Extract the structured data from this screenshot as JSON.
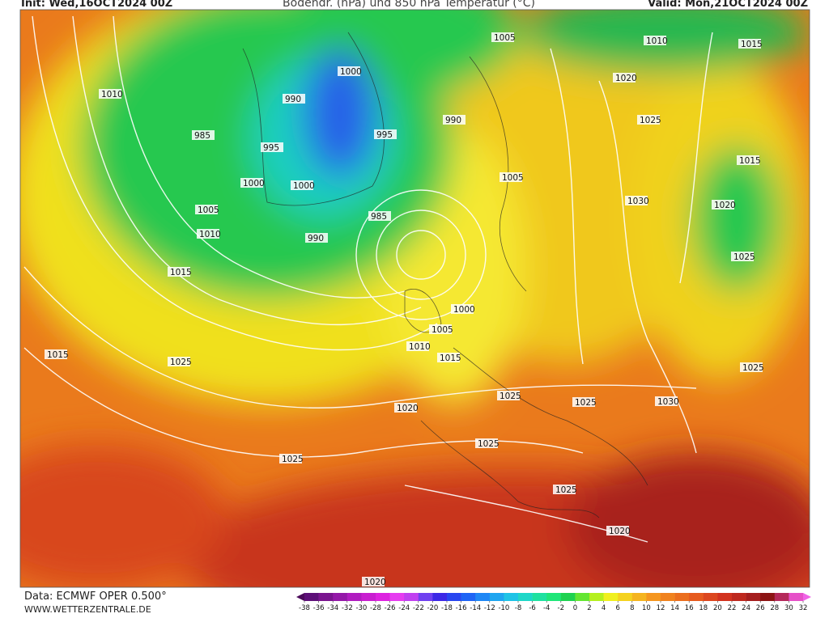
{
  "header": {
    "init": "Init: Wed,16OCT2024 00Z",
    "title": "Bodendr. (hPa) und 850 hPa Temperatur (°C)",
    "valid": "Valid: Mon,21OCT2024 00Z"
  },
  "footer": {
    "data": "Data: ECMWF OPER 0.500°",
    "site": "WWW.WETTERZENTRALE.DE"
  },
  "map": {
    "isobar_labels": [
      "1010",
      "990",
      "985",
      "995",
      "1000",
      "1000",
      "1005",
      "1010",
      "990",
      "985",
      "1015",
      "1000",
      "995",
      "990",
      "1005",
      "1010",
      "1015",
      "1020",
      "1025",
      "1005",
      "1015",
      "1030",
      "1020",
      "1025",
      "1000",
      "1005",
      "1010",
      "1015",
      "1015",
      "1025",
      "1025",
      "1025",
      "1030",
      "1025",
      "1020",
      "1025",
      "1025",
      "1025",
      "1020",
      "1020"
    ]
  },
  "colorbar": {
    "ticks": [
      -38,
      -36,
      -34,
      -32,
      -30,
      -28,
      -26,
      -24,
      -22,
      -20,
      -18,
      -16,
      -14,
      -12,
      -10,
      -8,
      -6,
      -4,
      -2,
      0,
      2,
      4,
      6,
      8,
      10,
      12,
      14,
      16,
      18,
      20,
      22,
      24,
      26,
      28,
      30,
      32
    ],
    "colors": [
      "#4b0a5a",
      "#5d0f78",
      "#7a148f",
      "#9418a8",
      "#b01cc0",
      "#c81ed0",
      "#dd22e0",
      "#e63cf0",
      "#c040f0",
      "#7040f0",
      "#3c28e6",
      "#2846f0",
      "#1e64f5",
      "#1e87f5",
      "#1ea5f0",
      "#1ec3e6",
      "#1ed7c8",
      "#1ee1a0",
      "#1ee678",
      "#1ed250",
      "#64e632",
      "#b4f01e",
      "#f0f01e",
      "#f5d21e",
      "#f5b41e",
      "#f5961e",
      "#f0821e",
      "#eb6e1e",
      "#e65a1e",
      "#dc461e",
      "#d2321e",
      "#be281e",
      "#a51e1e",
      "#8c1414",
      "#b4285a",
      "#e650c8",
      "#f064e6"
    ]
  }
}
